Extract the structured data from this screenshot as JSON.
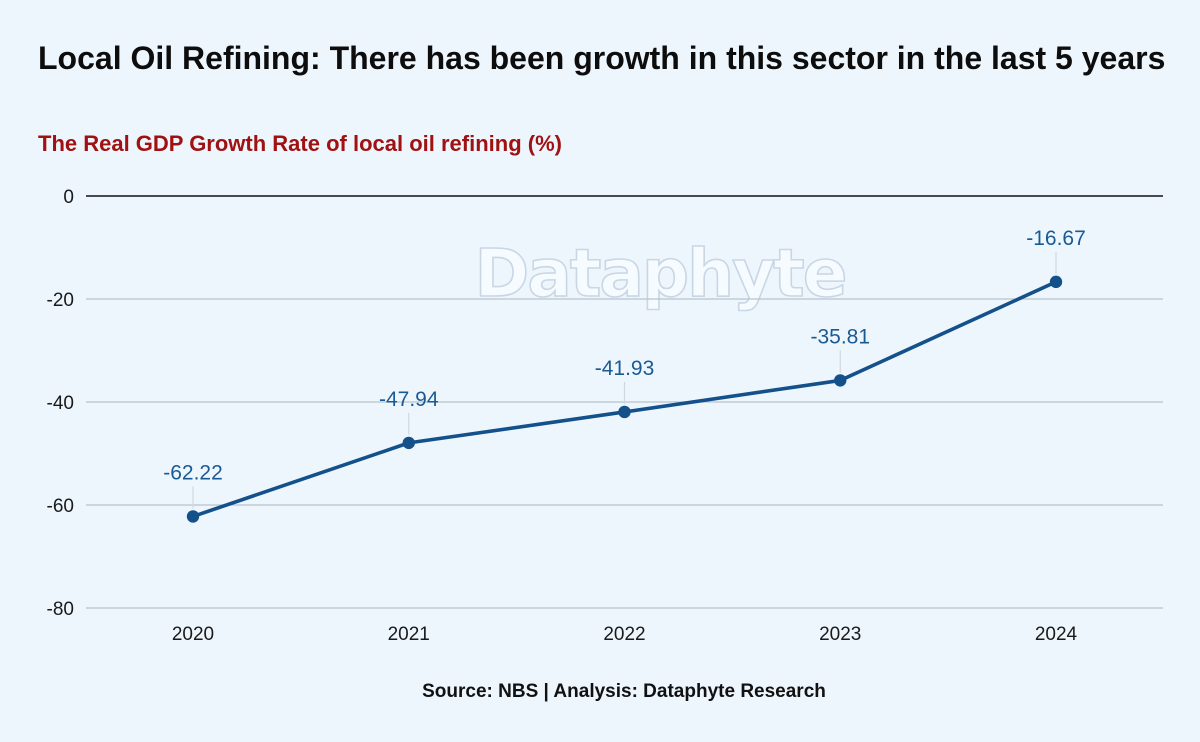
{
  "title": "Local Oil Refining: There has been  growth in this sector in the last 5 years",
  "subtitle": "The Real GDP Growth Rate of local oil refining (%)",
  "watermark": "Dataphyte",
  "source": "Source: NBS | Analysis: Dataphyte Research",
  "colors": {
    "line": "#14508a",
    "label": "#1a5a94",
    "subtitle": "#a01212",
    "background": "#eef6fd",
    "grid": "#b9c3cc",
    "zero_line": "#111111"
  },
  "chart_data": {
    "type": "line",
    "title": "Local Oil Refining: There has been  growth in this sector in the last 5 years",
    "subtitle": "The Real GDP Growth Rate of local oil refining (%)",
    "xlabel": "",
    "ylabel": "",
    "categories": [
      "2020",
      "2021",
      "2022",
      "2023",
      "2024"
    ],
    "values": [
      -62.22,
      -47.94,
      -41.93,
      -35.81,
      -16.67
    ],
    "data_labels": [
      "-62.22",
      "-47.94",
      "-41.93",
      "-35.81",
      "-16.67"
    ],
    "ylim": [
      -80,
      0
    ],
    "yticks": [
      0,
      -20,
      -40,
      -60,
      -80
    ],
    "ytick_labels": [
      "0",
      "-20",
      "-40",
      "-60",
      "-80"
    ],
    "grid": true,
    "legend": "none"
  }
}
